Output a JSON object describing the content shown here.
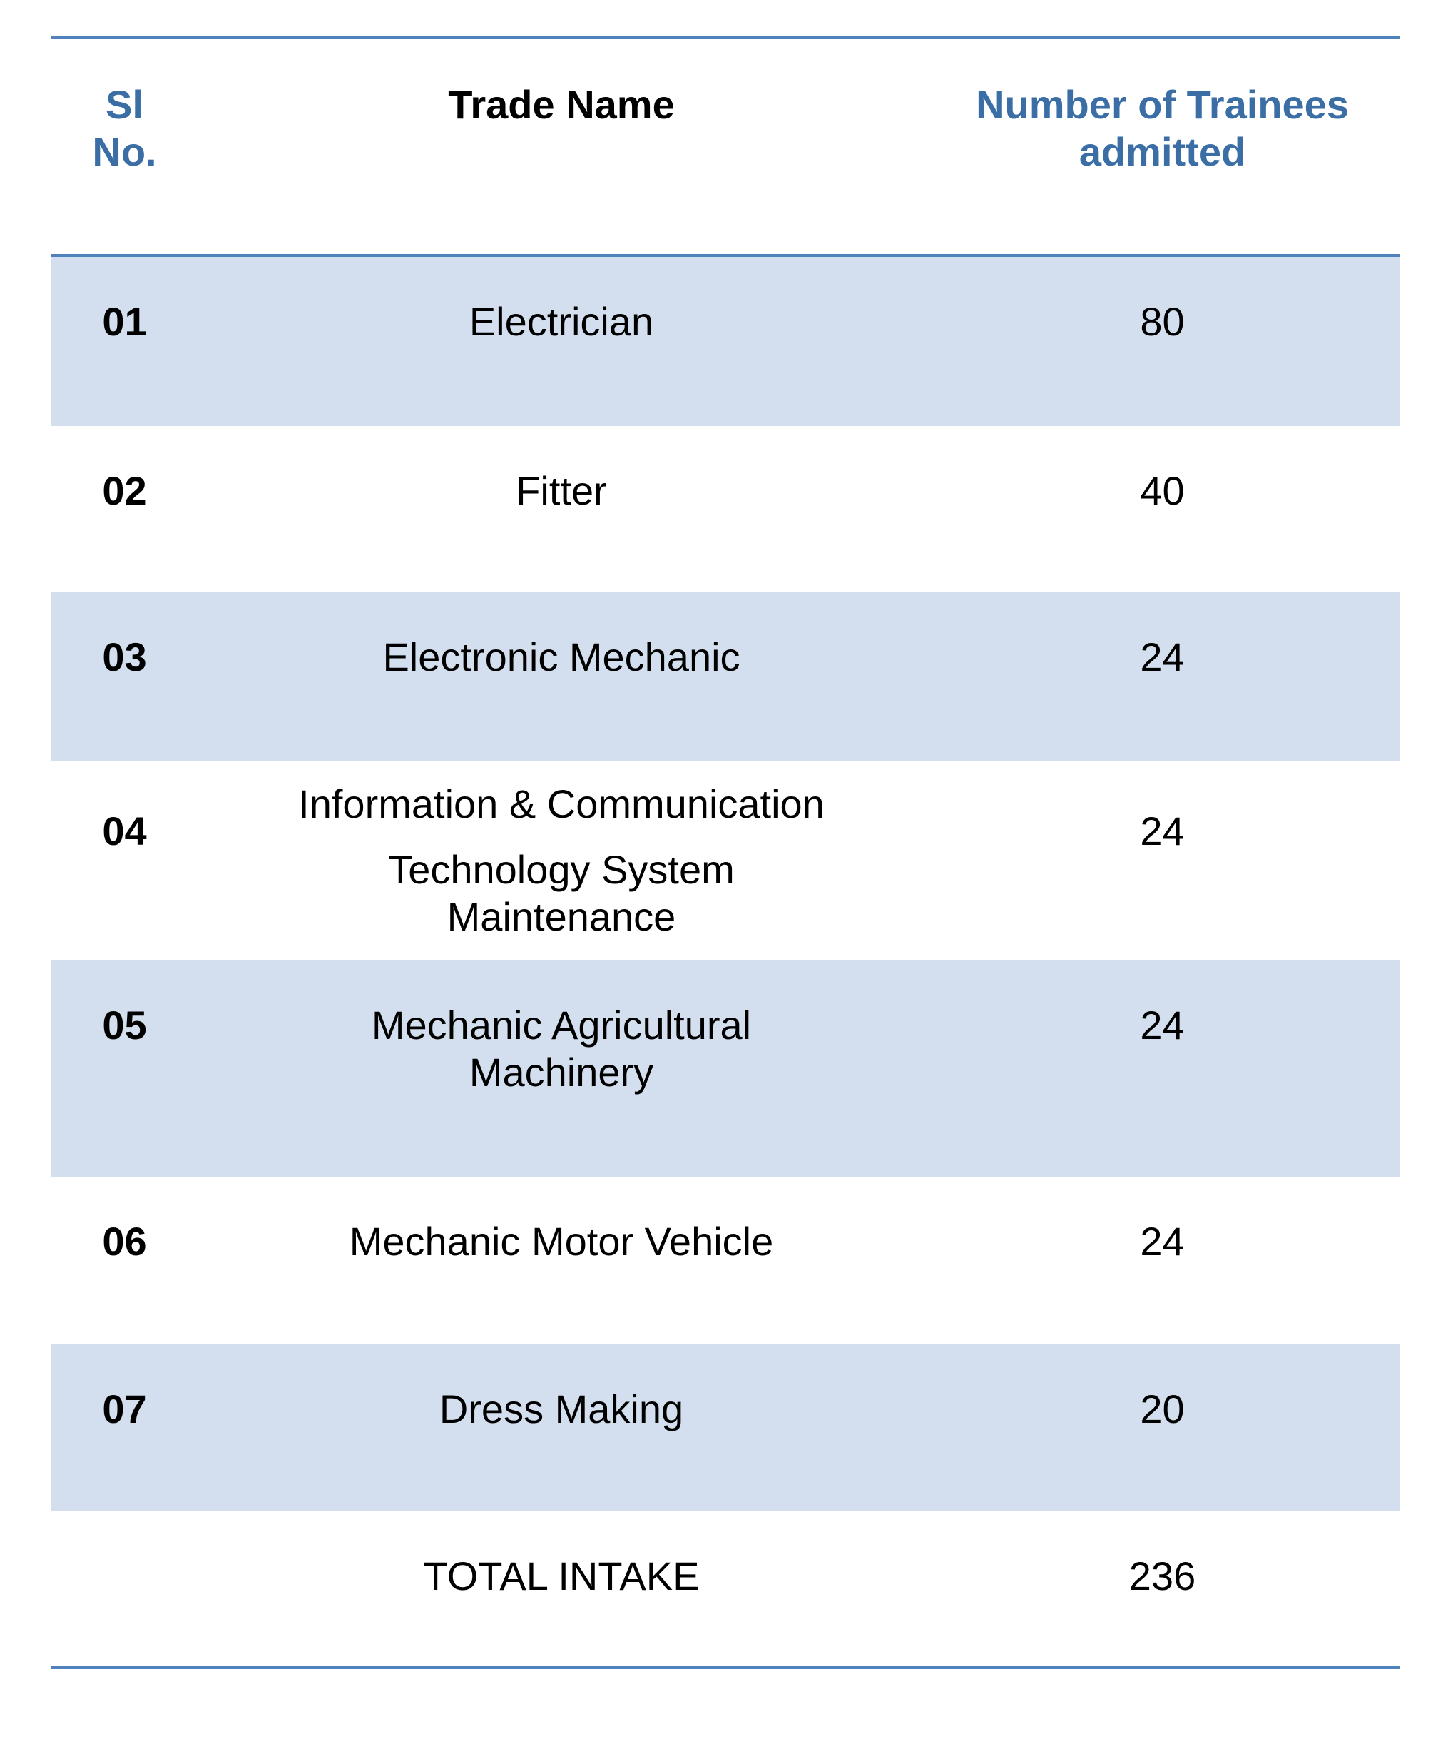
{
  "table": {
    "headers": {
      "sl_no": "Sl\nNo.",
      "trade_name": "Trade Name",
      "trainees": "Number of Trainees\nadmitted"
    },
    "rows": [
      {
        "sl": "01",
        "trade": "Electrician",
        "count": "80"
      },
      {
        "sl": "02",
        "trade": "Fitter",
        "count": "40"
      },
      {
        "sl": "03",
        "trade": "Electronic Mechanic",
        "count": "24"
      },
      {
        "sl": "04",
        "trade_line1": "Information & Communication",
        "trade_line2": "Technology System\nMaintenance",
        "count": "24"
      },
      {
        "sl": "05",
        "trade": "Mechanic Agricultural\nMachinery",
        "count": "24"
      },
      {
        "sl": "06",
        "trade": "Mechanic Motor Vehicle",
        "count": "24"
      },
      {
        "sl": "07",
        "trade": "Dress Making",
        "count": "20"
      }
    ],
    "total": {
      "label": "TOTAL INTAKE",
      "count": "236"
    },
    "colors": {
      "rule": "#4f81bd",
      "header_text_blue": "#3a6ea5",
      "shaded_row": "#d3dfee"
    }
  }
}
